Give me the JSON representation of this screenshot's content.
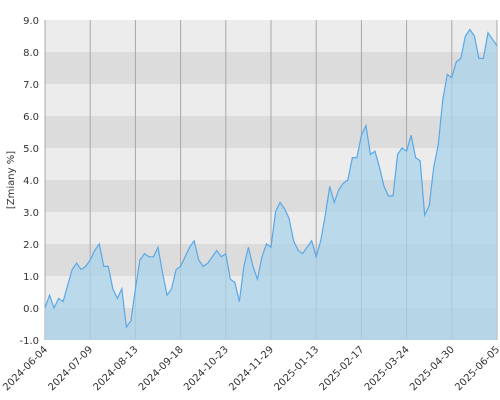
{
  "chart_data": {
    "type": "area",
    "y_label": "[Zmiany %]",
    "categories": [
      "2024-06-04",
      null,
      null,
      null,
      null,
      null,
      null,
      null,
      null,
      null,
      "2024-07-09",
      null,
      null,
      null,
      null,
      null,
      null,
      null,
      null,
      null,
      "2024-08-13",
      null,
      null,
      null,
      null,
      null,
      null,
      null,
      null,
      null,
      "2024-09-18",
      null,
      null,
      null,
      null,
      null,
      null,
      null,
      null,
      null,
      "2024-10-23",
      null,
      null,
      null,
      null,
      null,
      null,
      null,
      null,
      null,
      "2024-11-29",
      null,
      null,
      null,
      null,
      null,
      null,
      null,
      null,
      null,
      "2025-01-13",
      null,
      null,
      null,
      null,
      null,
      null,
      null,
      null,
      null,
      "2025-02-17",
      null,
      null,
      null,
      null,
      null,
      null,
      null,
      null,
      null,
      "2025-03-24",
      null,
      null,
      null,
      null,
      null,
      null,
      null,
      null,
      null,
      "2025-04-30",
      null,
      null,
      null,
      null,
      null,
      null,
      null,
      null,
      null,
      "2025-06-05"
    ],
    "series": [
      {
        "color": "#5aa8e6",
        "fill": "#a9d3ea",
        "values": [
          0.0,
          0.4,
          0.0,
          0.3,
          0.2,
          0.7,
          1.2,
          1.4,
          1.2,
          1.3,
          1.5,
          1.8,
          2.0,
          1.3,
          1.3,
          0.6,
          0.3,
          0.6,
          -0.6,
          -0.4,
          0.6,
          1.5,
          1.7,
          1.6,
          1.6,
          1.9,
          1.1,
          0.4,
          0.6,
          1.2,
          1.3,
          1.6,
          1.9,
          2.1,
          1.5,
          1.3,
          1.4,
          1.6,
          1.8,
          1.6,
          1.7,
          0.9,
          0.8,
          0.2,
          1.3,
          1.9,
          1.3,
          0.9,
          1.6,
          2.0,
          1.9,
          3.0,
          3.3,
          3.1,
          2.8,
          2.1,
          1.8,
          1.7,
          1.9,
          2.1,
          1.6,
          2.1,
          2.9,
          3.8,
          3.3,
          3.7,
          3.9,
          4.0,
          4.7,
          4.7,
          5.4,
          5.7,
          4.8,
          4.9,
          4.4,
          3.8,
          3.5,
          3.5,
          4.8,
          5.0,
          4.9,
          5.4,
          4.7,
          4.6,
          2.9,
          3.2,
          4.4,
          5.1,
          6.5,
          7.3,
          7.2,
          7.7,
          7.8,
          8.5,
          8.7,
          8.5,
          7.8,
          7.8,
          8.6,
          8.4,
          8.2
        ]
      }
    ],
    "ylim": [
      -1,
      9
    ],
    "yticks": [
      {
        "value": -1,
        "label": "-1.0"
      },
      {
        "value": 0,
        "label": "0.0"
      },
      {
        "value": 1,
        "label": "1.0"
      },
      {
        "value": 2,
        "label": "2.0"
      },
      {
        "value": 3,
        "label": "3.0"
      },
      {
        "value": 4,
        "label": "4.0"
      },
      {
        "value": 5,
        "label": "5.0"
      },
      {
        "value": 6,
        "label": "6.0"
      },
      {
        "value": 7,
        "label": "7.0"
      },
      {
        "value": 8,
        "label": "8.0"
      },
      {
        "value": 9,
        "label": "9.0"
      }
    ],
    "band_colors": [
      "#ececec",
      "#dcdcdc"
    ],
    "grid_color": "#a8a8a8"
  }
}
